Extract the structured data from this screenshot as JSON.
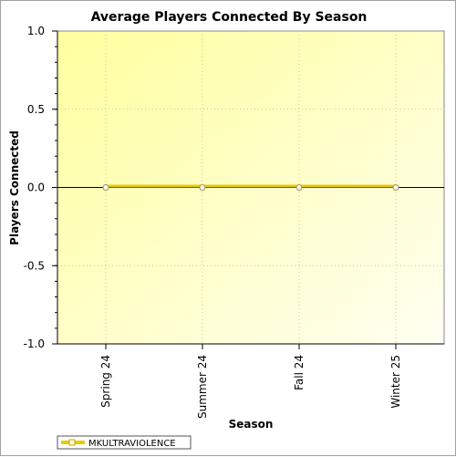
{
  "chart_data": {
    "type": "line",
    "title": "Average Players Connected By Season",
    "xlabel": "Season",
    "ylabel": "Players Connected",
    "categories": [
      "Spring 24",
      "Summer 24",
      "Fall 24",
      "Winter 25"
    ],
    "ylim": [
      -1.0,
      1.0
    ],
    "yticks": [
      "1.0",
      "0.5",
      "0.0",
      "-0.5",
      "-1.0"
    ],
    "ytick_values": [
      1.0,
      0.5,
      0.0,
      -0.5,
      -1.0
    ],
    "grid": true,
    "legend_position": "bottom-left",
    "series": [
      {
        "name": "MKULTRAVIOLENCE",
        "values": [
          0,
          0,
          0,
          0
        ],
        "color": "#e8c800",
        "marker_fill": "#fffde8"
      }
    ],
    "colors": {
      "plot_bg_left": "#ffff9e",
      "plot_bg_right": "#fffff2",
      "grid": "#c8c8a0",
      "zero_line": "#000000"
    }
  }
}
